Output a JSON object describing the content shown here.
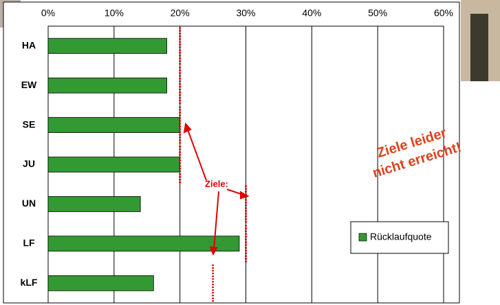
{
  "chart_data": {
    "type": "bar",
    "orientation": "horizontal",
    "categories": [
      "HA",
      "EW",
      "SE",
      "JU",
      "UN",
      "LF",
      "kLF"
    ],
    "series": [
      {
        "name": "Rücklaufquote",
        "color": "#339933",
        "values": [
          18,
          18,
          20,
          20,
          14,
          29,
          16
        ]
      }
    ],
    "targets": [
      20,
      20,
      20,
      20,
      30,
      30,
      25
    ],
    "target_color": "#e00000",
    "xlim": [
      0,
      60
    ],
    "xticks": [
      {
        "value": 0,
        "label": "0%"
      },
      {
        "value": 10,
        "label": "10%"
      },
      {
        "value": 20,
        "label": "20%"
      },
      {
        "value": 30,
        "label": "30%"
      },
      {
        "value": 40,
        "label": "40%"
      },
      {
        "value": 50,
        "label": "50%"
      },
      {
        "value": 60,
        "label": "60%"
      }
    ],
    "grid": true,
    "legend": "right",
    "annotations": [
      "Ziele:",
      "Ziele leider",
      "nicht erreicht!"
    ]
  }
}
